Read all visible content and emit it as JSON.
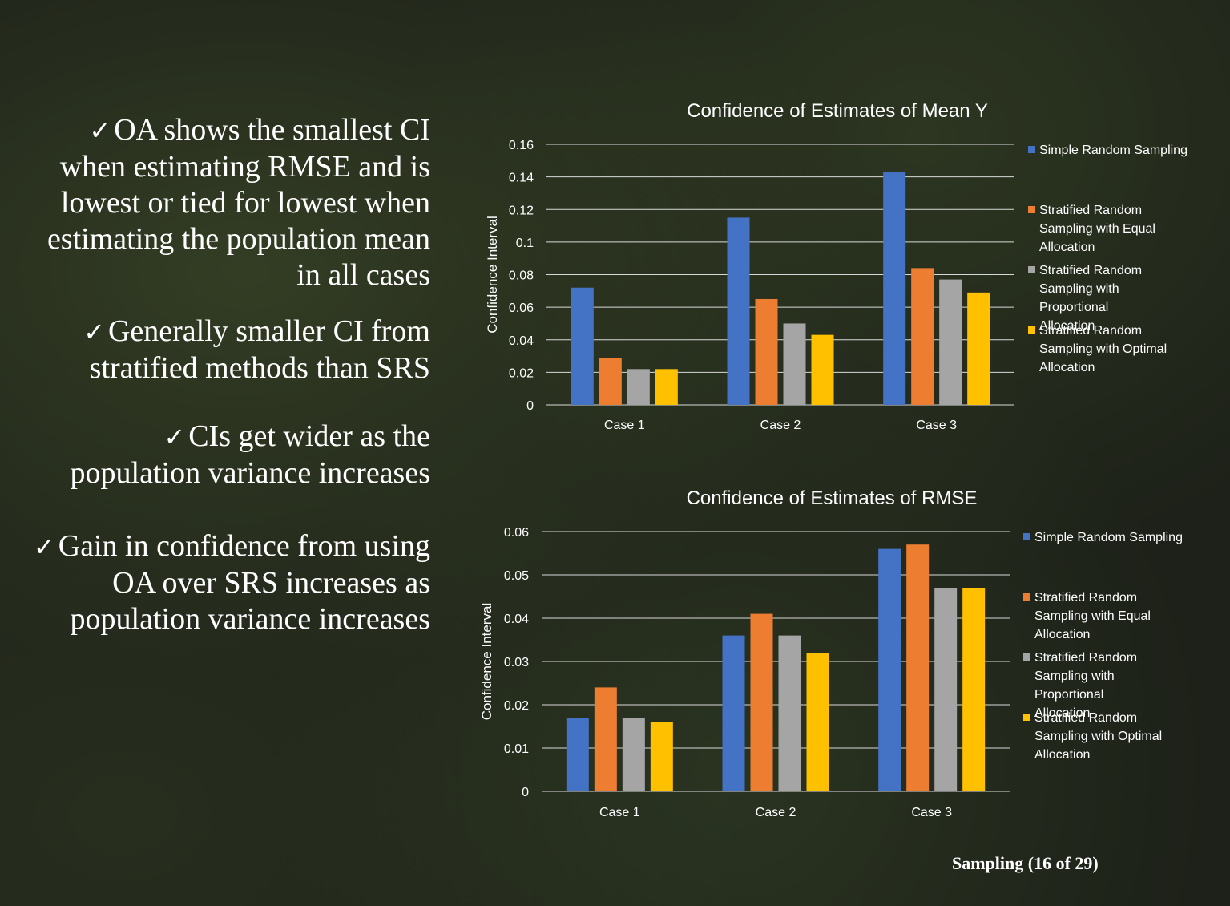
{
  "bullets": [
    "OA shows the smallest CI when estimating RMSE and is lowest or tied for lowest when estimating the population mean in all cases",
    "Generally smaller CI from stratified methods than SRS",
    "CIs get wider as the population variance increases",
    "Gain in confidence from using OA over SRS increases as population variance increases"
  ],
  "footer": "Sampling (16 of 29)",
  "check_icon": "✓",
  "chart_data": [
    {
      "type": "bar",
      "title": "Confidence of Estimates of Mean Y",
      "ylabel": "Confidence Interval",
      "xlabel": "",
      "categories": [
        "Case 1",
        "Case 2",
        "Case 3"
      ],
      "ylim": [
        0,
        0.16
      ],
      "yticks": [
        "0",
        "0.02",
        "0.04",
        "0.06",
        "0.08",
        "0.1",
        "0.12",
        "0.14",
        "0.16"
      ],
      "grid": true,
      "legend_position": "right",
      "series": [
        {
          "name": "Simple Random Sampling",
          "color": "#4472C4",
          "values": [
            0.072,
            0.115,
            0.143
          ]
        },
        {
          "name": "Stratified Random Sampling with Equal Allocation",
          "color": "#ED7D31",
          "values": [
            0.029,
            0.065,
            0.084
          ]
        },
        {
          "name": "Stratified Random Sampling with Proportional Allocation",
          "color": "#A5A5A5",
          "values": [
            0.022,
            0.05,
            0.077
          ]
        },
        {
          "name": "Stratified Random Sampling with Optimal Allocation",
          "color": "#FFC000",
          "values": [
            0.022,
            0.043,
            0.069
          ]
        }
      ]
    },
    {
      "type": "bar",
      "title": "Confidence of Estimates of RMSE",
      "ylabel": "Confidence Interval",
      "xlabel": "",
      "categories": [
        "Case 1",
        "Case 2",
        "Case 3"
      ],
      "ylim": [
        0,
        0.06
      ],
      "yticks": [
        "0",
        "0.01",
        "0.02",
        "0.03",
        "0.04",
        "0.05",
        "0.06"
      ],
      "grid": true,
      "legend_position": "right",
      "series": [
        {
          "name": "Simple Random Sampling",
          "color": "#4472C4",
          "values": [
            0.017,
            0.036,
            0.056
          ]
        },
        {
          "name": "Stratified Random Sampling with Equal Allocation",
          "color": "#ED7D31",
          "values": [
            0.024,
            0.041,
            0.057
          ]
        },
        {
          "name": "Stratified Random Sampling with Proportional Allocation",
          "color": "#A5A5A5",
          "values": [
            0.017,
            0.036,
            0.047
          ]
        },
        {
          "name": "Stratified Random Sampling with Optimal Allocation",
          "color": "#FFC000",
          "values": [
            0.016,
            0.032,
            0.047
          ]
        }
      ]
    }
  ]
}
